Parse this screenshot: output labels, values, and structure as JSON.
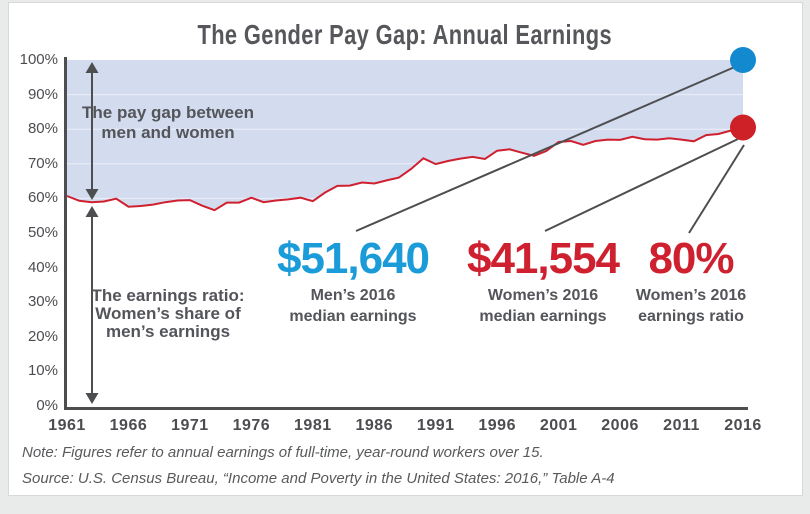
{
  "title": "The Gender Pay Gap: Annual Earnings",
  "chart_data": {
    "type": "area",
    "title": "The Gender Pay Gap: Annual Earnings",
    "xlabel": "",
    "ylabel": "",
    "xlim": [
      1961,
      2016
    ],
    "ylim": [
      0,
      100
    ],
    "x_ticks": [
      1961,
      1966,
      1971,
      1976,
      1981,
      1986,
      1991,
      1996,
      2001,
      2006,
      2011,
      2016
    ],
    "y_ticks": [
      0,
      10,
      20,
      30,
      40,
      50,
      60,
      70,
      80,
      90,
      100
    ],
    "grid": "faint horizontal gridlines visible inside shaded area",
    "legend": "none",
    "series": [
      {
        "name": "Women's earnings as a share of men's (earnings ratio, %)",
        "x": [
          1961,
          1962,
          1963,
          1964,
          1965,
          1966,
          1967,
          1968,
          1969,
          1970,
          1971,
          1972,
          1973,
          1974,
          1975,
          1976,
          1977,
          1978,
          1979,
          1980,
          1981,
          1982,
          1983,
          1984,
          1985,
          1986,
          1987,
          1988,
          1989,
          1990,
          1991,
          1992,
          1993,
          1994,
          1995,
          1996,
          1997,
          1998,
          1999,
          2000,
          2001,
          2002,
          2003,
          2004,
          2005,
          2006,
          2007,
          2008,
          2009,
          2010,
          2011,
          2012,
          2013,
          2014,
          2015,
          2016
        ],
        "values": [
          60.7,
          59.3,
          58.9,
          59.1,
          59.9,
          57.6,
          57.8,
          58.2,
          58.9,
          59.4,
          59.5,
          57.9,
          56.6,
          58.8,
          58.8,
          60.2,
          58.9,
          59.4,
          59.7,
          60.2,
          59.2,
          61.7,
          63.6,
          63.7,
          64.6,
          64.3,
          65.2,
          66.0,
          68.5,
          71.6,
          69.9,
          70.8,
          71.5,
          72.0,
          71.4,
          73.8,
          74.2,
          73.2,
          72.3,
          73.7,
          76.3,
          76.6,
          75.5,
          76.6,
          77.0,
          76.9,
          77.8,
          77.1,
          77.0,
          77.4,
          77.0,
          76.5,
          78.3,
          78.6,
          79.6,
          80.5
        ]
      }
    ],
    "shaded_region": "area between the earnings-ratio line and the 100% line (the pay gap)",
    "endpoints": [
      {
        "label": "Men's 2016 level",
        "x": 2016,
        "y": 100
      },
      {
        "label": "Women's 2016 earnings ratio",
        "x": 2016,
        "y": 80
      }
    ]
  },
  "annotations": {
    "pay_gap": {
      "line1": "The pay gap between",
      "line2": "men and women"
    },
    "earnings_ratio": {
      "line1": "The earnings ratio:",
      "line2": "Women’s share of",
      "line3": "men’s earnings"
    }
  },
  "stats": {
    "men": {
      "value": "$51,640",
      "caption_line1": "Men’s 2016",
      "caption_line2": "median earnings"
    },
    "women": {
      "value": "$41,554",
      "caption_line1": "Women’s 2016",
      "caption_line2": "median earnings"
    },
    "ratio": {
      "value": "80%",
      "caption_line1": "Women’s 2016",
      "caption_line2": "earnings ratio"
    }
  },
  "footnotes": {
    "note": "Note: Figures refer to annual earnings of full-time, year-round workers over 15.",
    "source": "Source: U.S. Census Bureau, “Income and Poverty in the United States: 2016,” Table A-4"
  },
  "colors": {
    "area_fill": "#d3dcef",
    "ratio_line": "#cf2030",
    "men_dot": "#1389cf",
    "women_dot": "#ce2027",
    "men_value_text": "#1b9cd9",
    "women_value_text": "#ce202e",
    "annotation_dark": "#4d4e50",
    "label_text": "#54555a"
  }
}
